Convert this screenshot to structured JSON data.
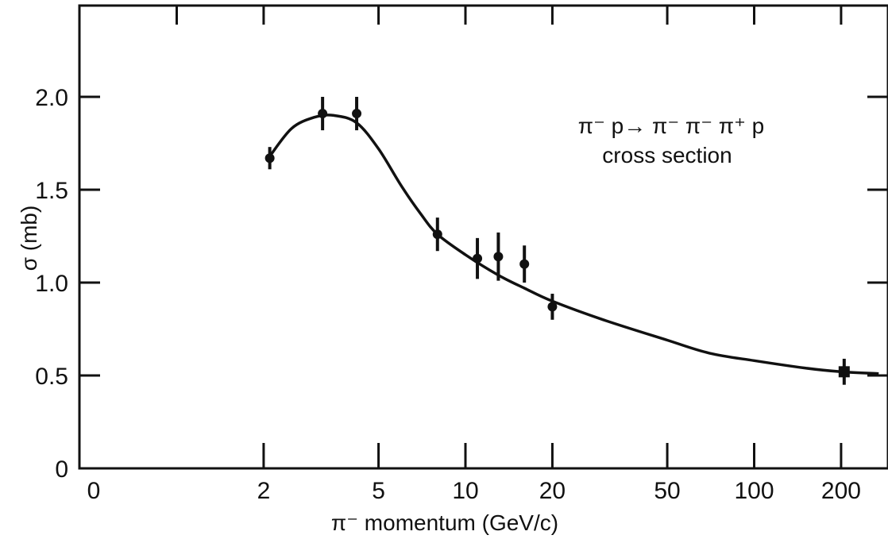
{
  "chart_data": {
    "type": "scatter",
    "title": "",
    "annotation_lines": [
      "π⁻ p→ π⁻ π⁻ π⁺ p",
      "cross section"
    ],
    "xlabel": "π⁻ momentum   (GeV/c)",
    "ylabel": "σ  (mb)",
    "x_scale": "log",
    "x_ticks": [
      {
        "value": 2,
        "label": "2"
      },
      {
        "value": 5,
        "label": "5"
      },
      {
        "value": 10,
        "label": "10"
      },
      {
        "value": 20,
        "label": "20"
      },
      {
        "value": 50,
        "label": "50"
      },
      {
        "value": 100,
        "label": "100"
      },
      {
        "value": 200,
        "label": "200"
      }
    ],
    "x_zero_label": "0",
    "y_ticks": [
      {
        "value": 0,
        "label": "0"
      },
      {
        "value": 0.5,
        "label": "0.5"
      },
      {
        "value": 1.0,
        "label": "1.0"
      },
      {
        "value": 1.5,
        "label": "1.5"
      },
      {
        "value": 2.0,
        "label": "2.0"
      }
    ],
    "ylim": [
      0,
      2.4
    ],
    "grid": false,
    "series": [
      {
        "points": [
          {
            "x": 2.1,
            "y": 1.67,
            "err": 0.06
          },
          {
            "x": 3.2,
            "y": 1.91,
            "err": 0.09
          },
          {
            "x": 4.2,
            "y": 1.91,
            "err": 0.09
          },
          {
            "x": 8.0,
            "y": 1.26,
            "err": 0.09
          },
          {
            "x": 11.0,
            "y": 1.13,
            "err": 0.11
          },
          {
            "x": 13.0,
            "y": 1.14,
            "err": 0.13
          },
          {
            "x": 16.0,
            "y": 1.1,
            "err": 0.1
          },
          {
            "x": 20.0,
            "y": 0.87,
            "err": 0.07
          },
          {
            "x": 205.0,
            "y": 0.52,
            "err": 0.07,
            "marker": "square"
          }
        ]
      }
    ],
    "fit_curve": [
      {
        "x": 2.1,
        "y": 1.68
      },
      {
        "x": 2.5,
        "y": 1.83
      },
      {
        "x": 3.0,
        "y": 1.89
      },
      {
        "x": 3.5,
        "y": 1.9
      },
      {
        "x": 4.2,
        "y": 1.86
      },
      {
        "x": 5.0,
        "y": 1.72
      },
      {
        "x": 6.0,
        "y": 1.52
      },
      {
        "x": 7.0,
        "y": 1.37
      },
      {
        "x": 8.0,
        "y": 1.26
      },
      {
        "x": 10.0,
        "y": 1.15
      },
      {
        "x": 13.0,
        "y": 1.04
      },
      {
        "x": 16.0,
        "y": 0.97
      },
      {
        "x": 20.0,
        "y": 0.9
      },
      {
        "x": 30.0,
        "y": 0.8
      },
      {
        "x": 50.0,
        "y": 0.69
      },
      {
        "x": 70.0,
        "y": 0.62
      },
      {
        "x": 100.0,
        "y": 0.58
      },
      {
        "x": 150.0,
        "y": 0.54
      },
      {
        "x": 200.0,
        "y": 0.52
      },
      {
        "x": 270.0,
        "y": 0.51
      }
    ]
  }
}
